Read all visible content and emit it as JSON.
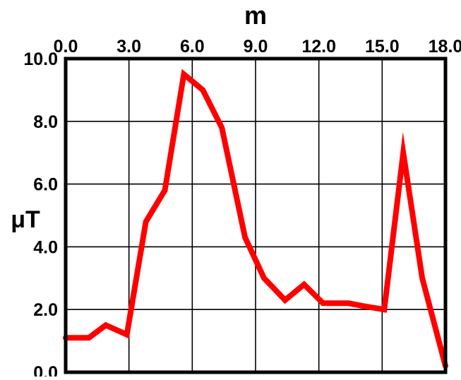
{
  "chart_data": {
    "type": "line",
    "title": "",
    "xlabel": "m",
    "ylabel": "μT",
    "xlim": [
      0,
      18
    ],
    "ylim": [
      0,
      10
    ],
    "x_axis_position": "top",
    "grid": true,
    "x_ticks": [
      0,
      3,
      6,
      9,
      12,
      15,
      18
    ],
    "x_tick_labels": [
      "0.0",
      "3.0",
      "6.0",
      "9.0",
      "12.0",
      "15.0",
      "18.0"
    ],
    "y_ticks": [
      0,
      2,
      4,
      6,
      8,
      10
    ],
    "y_tick_labels": [
      "0.0",
      "2.0",
      "4.0",
      "6.0",
      "8.0",
      "10.0"
    ],
    "series": [
      {
        "color": "#ff0000",
        "x": [
          0.0,
          1.1,
          1.9,
          2.9,
          3.8,
          4.7,
          5.6,
          6.5,
          7.4,
          8.5,
          9.4,
          10.4,
          11.3,
          12.2,
          13.4,
          14.2,
          15.1,
          16.0,
          16.9,
          18.0
        ],
        "y": [
          1.1,
          1.1,
          1.5,
          1.2,
          4.8,
          5.8,
          9.5,
          9.0,
          7.8,
          4.3,
          3.0,
          2.3,
          2.8,
          2.2,
          2.2,
          2.1,
          2.0,
          7.0,
          3.0,
          0.2
        ]
      }
    ]
  }
}
